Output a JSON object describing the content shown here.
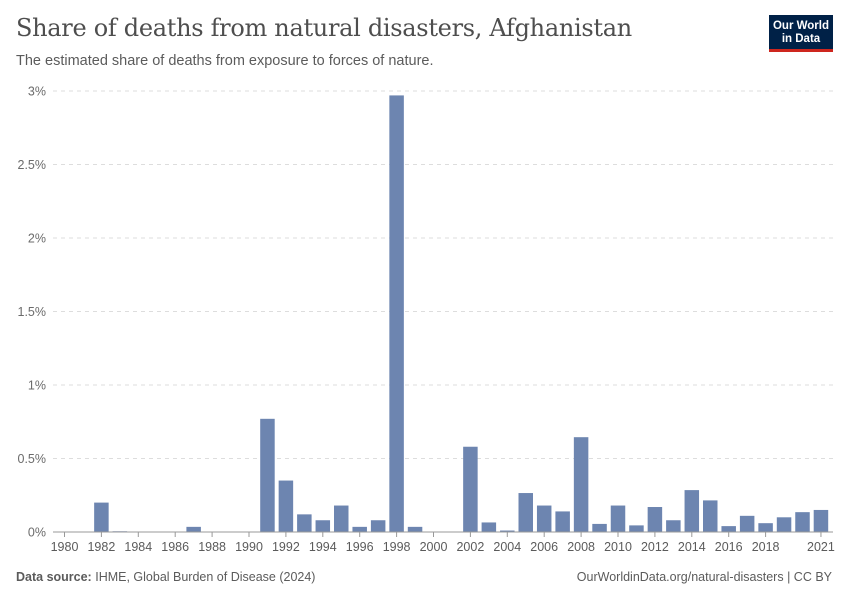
{
  "header": {
    "title": "Share of deaths from natural disasters, Afghanistan",
    "subtitle": "The estimated share of deaths from exposure to forces of nature."
  },
  "logo": {
    "line1": "Our World",
    "line2": "in Data"
  },
  "footer": {
    "source_label": "Data source:",
    "source_text": "IHME, Global Burden of Disease (2024)",
    "link_text": "OurWorldinData.org/natural-disasters | CC BY"
  },
  "colors": {
    "bar": "#6d85b0",
    "logo_bg": "#002147",
    "logo_accent": "#ce261e"
  },
  "chart_data": {
    "type": "bar",
    "title": "Share of deaths from natural disasters, Afghanistan",
    "xlabel": "",
    "ylabel": "",
    "ylim": [
      0,
      3
    ],
    "y_ticks": [
      0,
      0.5,
      1,
      1.5,
      2,
      2.5,
      3
    ],
    "y_tick_labels": [
      "0%",
      "0.5%",
      "1%",
      "1.5%",
      "2%",
      "2.5%",
      "3%"
    ],
    "x_tick_labels": [
      "1980",
      "1982",
      "1984",
      "1986",
      "1988",
      "1990",
      "1992",
      "1994",
      "1996",
      "1998",
      "2000",
      "2002",
      "2004",
      "2006",
      "2008",
      "2010",
      "2012",
      "2014",
      "2016",
      "2018",
      "2021"
    ],
    "unit": "%",
    "series": [
      {
        "name": "Afghanistan",
        "x": [
          1980,
          1981,
          1982,
          1983,
          1984,
          1985,
          1986,
          1987,
          1988,
          1989,
          1990,
          1991,
          1992,
          1993,
          1994,
          1995,
          1996,
          1997,
          1998,
          1999,
          2000,
          2001,
          2002,
          2003,
          2004,
          2005,
          2006,
          2007,
          2008,
          2009,
          2010,
          2011,
          2012,
          2013,
          2014,
          2015,
          2016,
          2017,
          2018,
          2019,
          2020,
          2021
        ],
        "values": [
          0,
          0,
          0.2,
          0.005,
          0.003,
          0.002,
          0.002,
          0.035,
          0.002,
          0.002,
          0.002,
          0.77,
          0.35,
          0.12,
          0.08,
          0.18,
          0.035,
          0.08,
          2.97,
          0.035,
          0.003,
          0.003,
          0.58,
          0.065,
          0.01,
          0.265,
          0.18,
          0.14,
          0.645,
          0.055,
          0.18,
          0.045,
          0.17,
          0.08,
          0.285,
          0.215,
          0.04,
          0.11,
          0.06,
          0.1,
          0.135,
          0.15
        ]
      }
    ]
  }
}
